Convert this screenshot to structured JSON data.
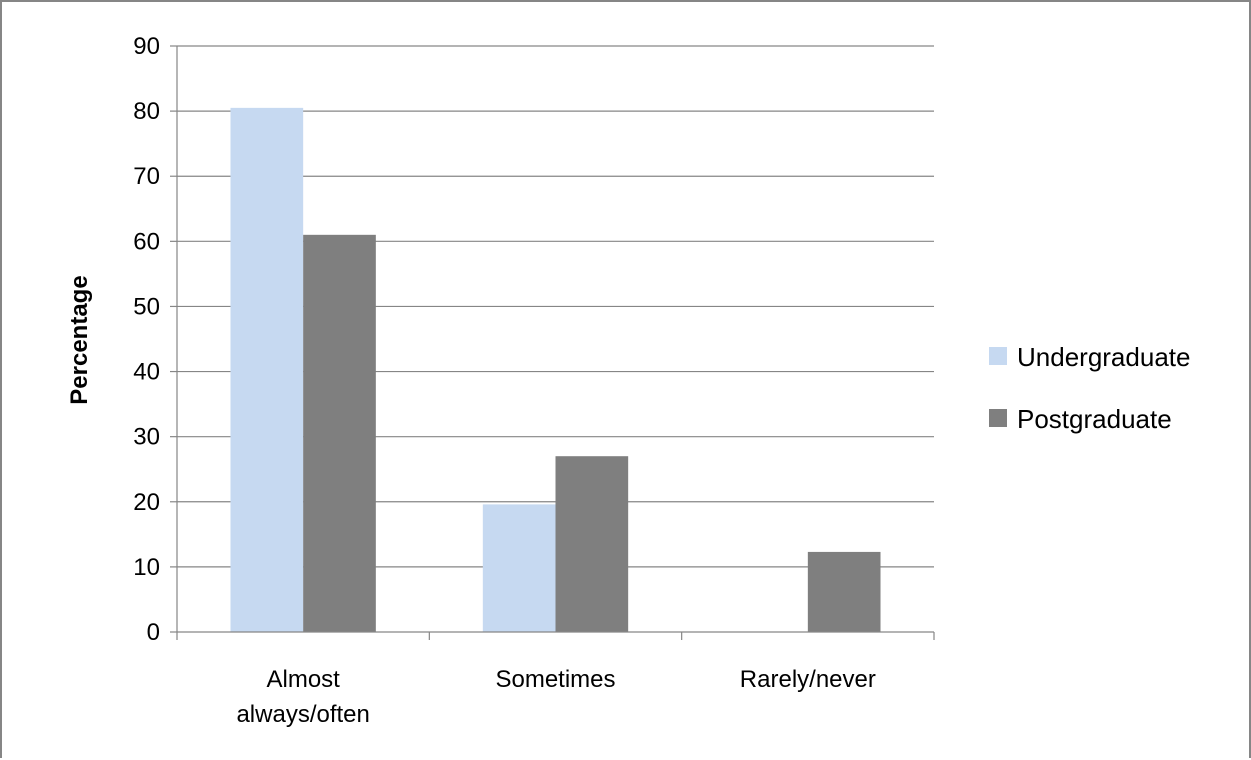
{
  "chart_data": {
    "type": "bar",
    "title": "",
    "xlabel": "",
    "ylabel": "Percentage",
    "ylim": [
      0,
      90
    ],
    "yticks": [
      0,
      10,
      20,
      30,
      40,
      50,
      60,
      70,
      80,
      90
    ],
    "categories": [
      [
        "Almost",
        "always/often"
      ],
      [
        "Sometimes"
      ],
      [
        "Rarely/never"
      ]
    ],
    "series": [
      {
        "name": "Undergraduate",
        "color": "#c6d9f1",
        "values": [
          80.5,
          19.6,
          0
        ]
      },
      {
        "name": "Postgraduate",
        "color": "#7f7f7f",
        "values": [
          61,
          27,
          12.3
        ]
      }
    ],
    "grid": true,
    "legend_position": "right"
  }
}
